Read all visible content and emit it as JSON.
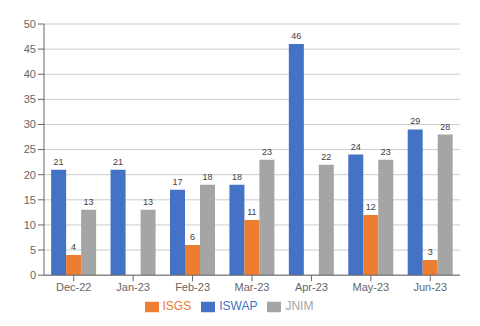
{
  "chart_data": {
    "type": "bar",
    "categories": [
      "Dec-22",
      "Jan-23",
      "Feb-23",
      "Mar-23",
      "Apr-23",
      "May-23",
      "Jun-23"
    ],
    "series": [
      {
        "name": "ISWAP",
        "color": "#4472C4",
        "values": [
          21,
          21,
          17,
          18,
          46,
          24,
          29
        ]
      },
      {
        "name": "ISGS",
        "color": "#ED7D31",
        "values": [
          4,
          0,
          6,
          11,
          0,
          12,
          3
        ]
      },
      {
        "name": "JNIM",
        "color": "#A5A5A5",
        "values": [
          13,
          13,
          18,
          23,
          22,
          23,
          28
        ]
      }
    ],
    "ylim": [
      0,
      50
    ],
    "yticks": [
      0,
      5,
      10,
      15,
      20,
      25,
      30,
      35,
      40,
      45,
      50
    ],
    "grid": true,
    "legend": "bottom",
    "data_labels": true
  }
}
